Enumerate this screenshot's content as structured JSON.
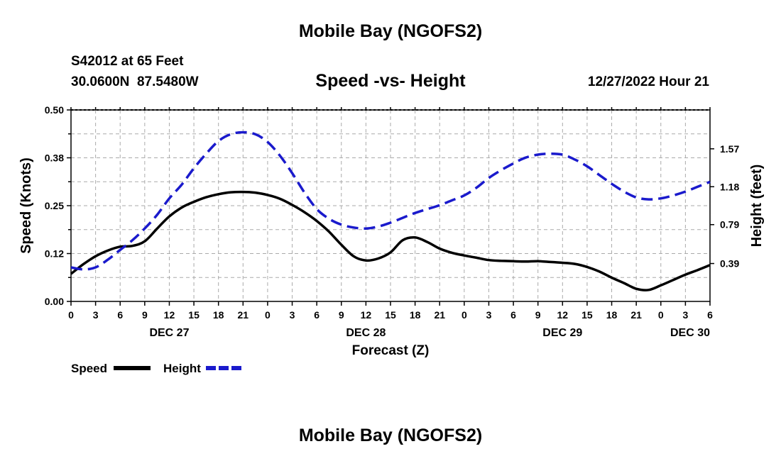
{
  "header": {
    "title": "Mobile Bay (NGOFS2)",
    "station": "S42012 at 65 Feet",
    "coords": "30.0600N  87.5480W",
    "plot_title": "Speed -vs- Height",
    "timestamp": "12/27/2022 Hour 21"
  },
  "footer": {
    "title": "Mobile Bay (NGOFS2)"
  },
  "colors": {
    "speed": "#000000",
    "height": "#1a1acc",
    "grid": "#aaaaaa"
  },
  "chart_data": {
    "type": "line",
    "title": "Speed -vs- Height",
    "xlabel": "Forecast (Z)",
    "ylabel": "Speed (Knots)",
    "y2label": "Height (feet)",
    "x_range_hours": [
      0,
      78
    ],
    "x_tick_labels": [
      "0",
      "3",
      "6",
      "9",
      "12",
      "15",
      "18",
      "21",
      "0",
      "3",
      "6",
      "9",
      "12",
      "15",
      "18",
      "21",
      "0",
      "3",
      "6",
      "9",
      "12",
      "15",
      "18",
      "21",
      "0",
      "3",
      "6"
    ],
    "day_labels": [
      {
        "label": "DEC 27",
        "hour": 12
      },
      {
        "label": "DEC 28",
        "hour": 36
      },
      {
        "label": "DEC 29",
        "hour": 60
      },
      {
        "label": "DEC 30",
        "hour": 72
      }
    ],
    "y_left": {
      "range": [
        0,
        0.5
      ],
      "ticks": [
        0,
        0.125,
        0.25,
        0.375,
        0.5
      ],
      "tick_labels": [
        "0.00",
        "0.12",
        "0.25",
        "0.38",
        "0.50"
      ]
    },
    "y_right": {
      "range": [
        0,
        1.97
      ],
      "ticks": [
        0.39,
        0.79,
        1.18,
        1.57
      ],
      "tick_labels": [
        "0.39",
        "0.79",
        "1.18",
        "1.57"
      ]
    },
    "series": [
      {
        "name": "Speed",
        "axis": "left",
        "style": "solid",
        "x": [
          0,
          1.5,
          3,
          4.5,
          6,
          7.5,
          9,
          10.5,
          12,
          13.5,
          15,
          16.5,
          18,
          19.5,
          21,
          22.5,
          24,
          25.5,
          27,
          28.5,
          30,
          31.5,
          33,
          34.5,
          36,
          37.5,
          39,
          40.5,
          42,
          43.5,
          45,
          46.5,
          48,
          49.5,
          51,
          52.5,
          54,
          55.5,
          57,
          58.5,
          60,
          61.5,
          63,
          64.5,
          66,
          67.5,
          69,
          70.5,
          72,
          73.5,
          75,
          76.5,
          78
        ],
        "values": [
          0.072,
          0.097,
          0.118,
          0.133,
          0.143,
          0.145,
          0.157,
          0.19,
          0.222,
          0.245,
          0.26,
          0.272,
          0.28,
          0.285,
          0.286,
          0.284,
          0.278,
          0.268,
          0.252,
          0.233,
          0.21,
          0.182,
          0.148,
          0.118,
          0.107,
          0.112,
          0.128,
          0.16,
          0.167,
          0.155,
          0.138,
          0.127,
          0.12,
          0.114,
          0.108,
          0.106,
          0.105,
          0.104,
          0.105,
          0.103,
          0.101,
          0.098,
          0.09,
          0.078,
          0.062,
          0.048,
          0.033,
          0.03,
          0.042,
          0.056,
          0.07,
          0.082,
          0.095
        ]
      },
      {
        "name": "Height",
        "axis": "right",
        "style": "dashed",
        "x": [
          0,
          1.5,
          3,
          4.5,
          6,
          7.5,
          9,
          10.5,
          12,
          13.5,
          15,
          16.5,
          18,
          19.5,
          21,
          22.5,
          24,
          25.5,
          27,
          28.5,
          30,
          31.5,
          33,
          34.5,
          36,
          37.5,
          39,
          40.5,
          42,
          43.5,
          45,
          46.5,
          48,
          49.5,
          51,
          52.5,
          54,
          55.5,
          57,
          58.5,
          60,
          61.5,
          63,
          64.5,
          66,
          67.5,
          69,
          70.5,
          72,
          73.5,
          75,
          76.5,
          78
        ],
        "values": [
          0.35,
          0.33,
          0.35,
          0.43,
          0.53,
          0.63,
          0.75,
          0.89,
          1.06,
          1.2,
          1.37,
          1.52,
          1.65,
          1.72,
          1.74,
          1.72,
          1.64,
          1.5,
          1.32,
          1.12,
          0.95,
          0.85,
          0.79,
          0.76,
          0.75,
          0.77,
          0.81,
          0.86,
          0.91,
          0.95,
          0.99,
          1.04,
          1.09,
          1.17,
          1.27,
          1.35,
          1.42,
          1.48,
          1.51,
          1.52,
          1.51,
          1.46,
          1.39,
          1.3,
          1.21,
          1.13,
          1.07,
          1.05,
          1.06,
          1.09,
          1.13,
          1.18,
          1.23
        ]
      }
    ],
    "legend": {
      "placement": "bottom-left",
      "entries": [
        "Speed",
        "Height"
      ]
    }
  }
}
